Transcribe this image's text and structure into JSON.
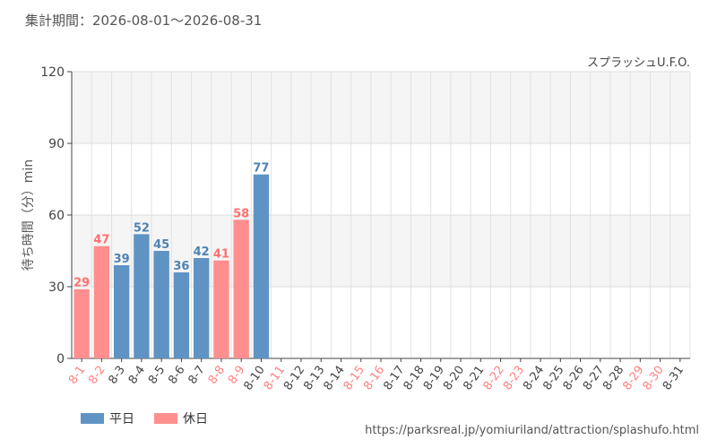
{
  "period_text": "集計期間：2026-08-01～2026-08-31",
  "attraction": "スプラッシュU.F.O.",
  "source_url": "https://parksreal.jp/yomiuriland/attraction/splashufo.html",
  "legend": [
    {
      "label": "平日",
      "color": "#5f93c4"
    },
    {
      "label": "休日",
      "color": "#ff8f8f"
    }
  ],
  "chart_data": {
    "type": "bar",
    "ylabel": "待ち時間（分）min",
    "ylim": [
      0,
      120
    ],
    "yticks": [
      0,
      30,
      60,
      90,
      120
    ],
    "grid": true,
    "weekday_color": "#5f93c4",
    "holiday_color": "#ff8f8f",
    "categories": [
      "8-1",
      "8-2",
      "8-3",
      "8-4",
      "8-5",
      "8-6",
      "8-7",
      "8-8",
      "8-9",
      "8-10",
      "8-11",
      "8-12",
      "8-13",
      "8-14",
      "8-15",
      "8-16",
      "8-17",
      "8-18",
      "8-19",
      "8-20",
      "8-21",
      "8-22",
      "8-23",
      "8-24",
      "8-25",
      "8-26",
      "8-27",
      "8-28",
      "8-29",
      "8-30",
      "8-31"
    ],
    "holiday": [
      true,
      true,
      false,
      false,
      false,
      false,
      false,
      true,
      true,
      false,
      true,
      false,
      false,
      false,
      true,
      true,
      false,
      false,
      false,
      false,
      false,
      true,
      true,
      false,
      false,
      false,
      false,
      false,
      true,
      true,
      false
    ],
    "values": [
      29,
      47,
      39,
      52,
      45,
      36,
      42,
      41,
      58,
      77,
      null,
      null,
      null,
      null,
      null,
      null,
      null,
      null,
      null,
      null,
      null,
      null,
      null,
      null,
      null,
      null,
      null,
      null,
      null,
      null,
      null
    ]
  }
}
